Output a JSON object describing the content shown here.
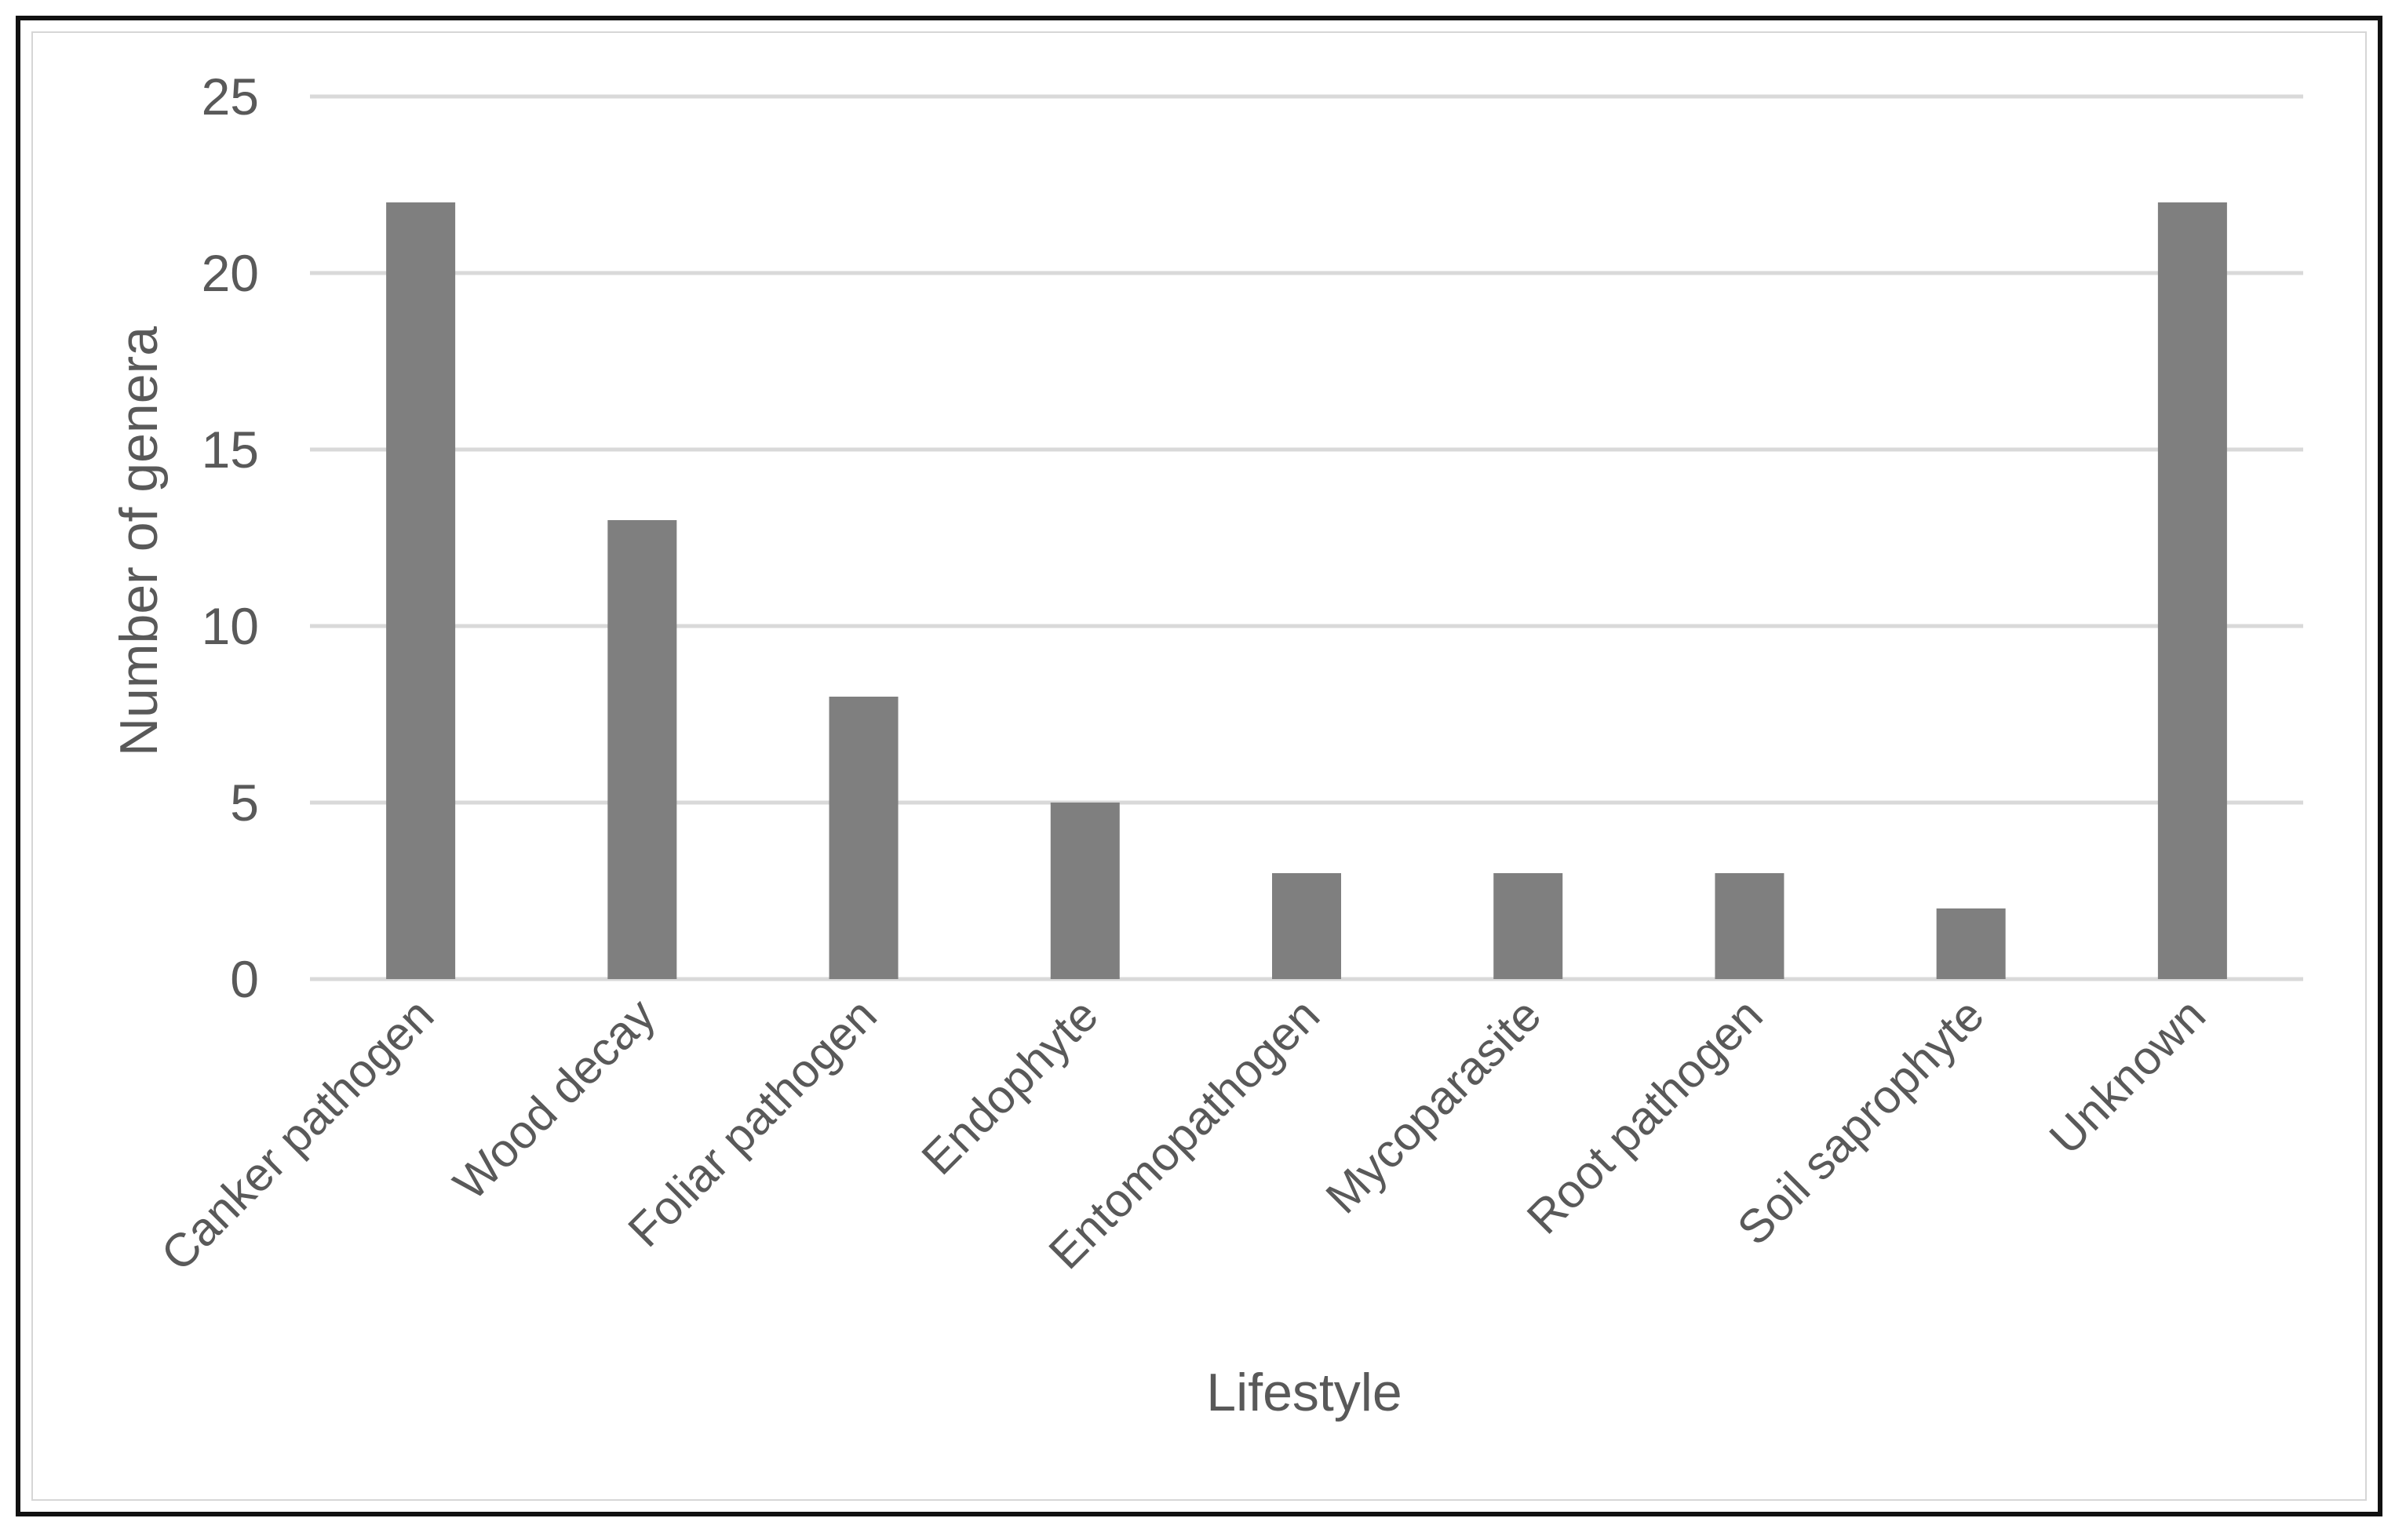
{
  "chart_data": {
    "type": "bar",
    "title": "",
    "xlabel": "Lifestyle",
    "ylabel": "Number of genera",
    "categories": [
      "Canker pathogen",
      "Wood decay",
      "Foliar pathogen",
      "Endophyte",
      "Entomopathogen",
      "Mycoparasite",
      "Root pathogen",
      "Soil saprophyte",
      "Unknown"
    ],
    "values": [
      22,
      13,
      8,
      5,
      3,
      3,
      3,
      2,
      22
    ],
    "ylim": [
      0,
      25
    ],
    "yticks": [
      "0",
      "5",
      "10",
      "15",
      "20",
      "25"
    ],
    "grid": true,
    "legend": "none",
    "bar_color": "#7f7f7f",
    "grid_color": "#d9d9d9",
    "text_color": "#595959"
  }
}
